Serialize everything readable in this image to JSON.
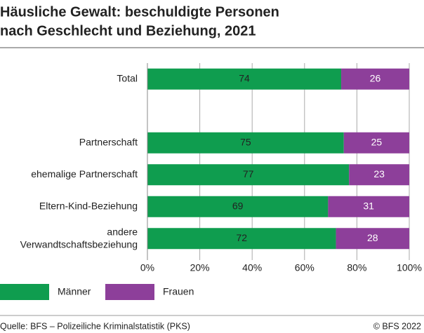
{
  "chart_data": {
    "type": "stacked_bar_horizontal",
    "title": "Häusliche Gewalt: beschuldigte Personen",
    "subtitle": "nach Geschlecht und Beziehung, 2021",
    "categories": [
      "Total",
      null,
      "Partnerschaft",
      "ehemalige Partnerschaft",
      "Eltern-Kind-Beziehung",
      "andere Verwandtschaftsbeziehung"
    ],
    "series": [
      {
        "name": "Männer",
        "color": "#0f9d4f",
        "values": [
          74,
          null,
          75,
          77,
          69,
          72
        ]
      },
      {
        "name": "Frauen",
        "color": "#8d3f9a",
        "values": [
          26,
          null,
          25,
          23,
          31,
          28
        ]
      }
    ],
    "xlim": [
      0,
      100
    ],
    "xticks": [
      {
        "value": 0,
        "label": "0%"
      },
      {
        "value": 20,
        "label": "20%"
      },
      {
        "value": 40,
        "label": "40%"
      },
      {
        "value": 60,
        "label": "60%"
      },
      {
        "value": 80,
        "label": "80%"
      },
      {
        "value": 100,
        "label": "100%"
      }
    ],
    "grid": true,
    "source": "Quelle: BFS – Polizeiliche Kriminalstatistik (PKS)",
    "copyright": "© BFS 2022"
  }
}
